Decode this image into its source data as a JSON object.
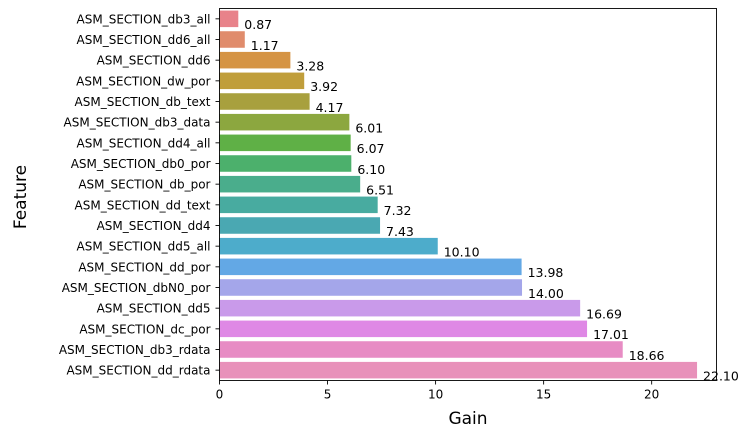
{
  "chart_data": {
    "type": "bar",
    "orientation": "horizontal",
    "xlabel": "Gain",
    "ylabel": "Feature",
    "xlim": [
      0,
      23
    ],
    "xticks": [
      0,
      5,
      10,
      15,
      20
    ],
    "grid": false,
    "categories": [
      "ASM_SECTION_db3_all",
      "ASM_SECTION_dd6_all",
      "ASM_SECTION_dd6",
      "ASM_SECTION_dw_por",
      "ASM_SECTION_db_text",
      "ASM_SECTION_db3_data",
      "ASM_SECTION_dd4_all",
      "ASM_SECTION_db0_por",
      "ASM_SECTION_db_por",
      "ASM_SECTION_dd_text",
      "ASM_SECTION_dd4",
      "ASM_SECTION_dd5_all",
      "ASM_SECTION_dd_por",
      "ASM_SECTION_dbN0_por",
      "ASM_SECTION_dd5",
      "ASM_SECTION_dc_por",
      "ASM_SECTION_db3_rdata",
      "ASM_SECTION_dd_rdata"
    ],
    "values": [
      0.87,
      1.17,
      3.28,
      3.92,
      4.17,
      6.01,
      6.07,
      6.1,
      6.51,
      7.32,
      7.43,
      10.1,
      13.98,
      14.0,
      16.69,
      17.01,
      18.66,
      22.1
    ],
    "value_labels": [
      "0.87",
      "1.17",
      "3.28",
      "3.92",
      "4.17",
      "6.01",
      "6.07",
      "6.10",
      "6.51",
      "7.32",
      "7.43",
      "10.10",
      "13.98",
      "14.00",
      "16.69",
      "17.01",
      "18.66",
      "22.10"
    ],
    "colors": [
      "#e8828a",
      "#e08c6c",
      "#d59444",
      "#c09e3b",
      "#a8a03e",
      "#8ca73f",
      "#5fb046",
      "#4cb06c",
      "#4aad8c",
      "#48aba0",
      "#4aa8b2",
      "#4daccb",
      "#63a8e5",
      "#a4a6ea",
      "#c99aea",
      "#df88e5",
      "#e78cc4",
      "#e891ba"
    ]
  }
}
